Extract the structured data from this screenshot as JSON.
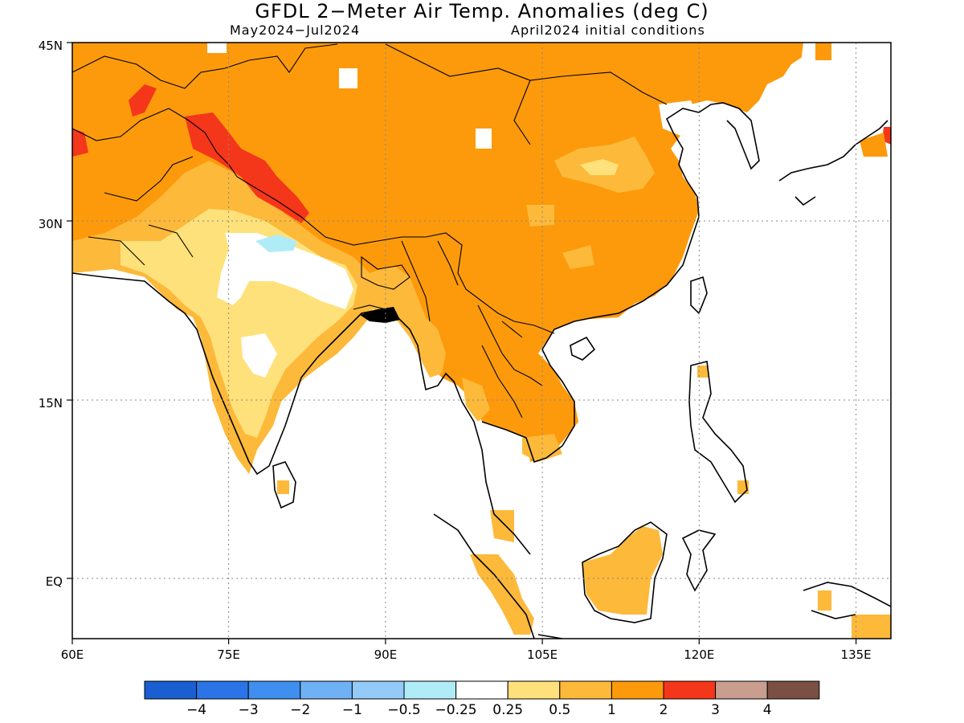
{
  "title": "GFDL 2−Meter Air Temp. Anomalies (deg C)",
  "subtitle_left": "May2024−Jul2024",
  "subtitle_right": "April2024 initial conditions",
  "map": {
    "lon_range": [
      60,
      140
    ],
    "lat_range": [
      -5.5,
      45
    ],
    "x_ticks": [
      "60E",
      "75E",
      "90E",
      "105E",
      "120E",
      "135E"
    ],
    "y_ticks": [
      "45N",
      "30N",
      "15N",
      "EQ"
    ]
  },
  "colorbar": {
    "colors": [
      "#1a5fd1",
      "#2a74e8",
      "#3f8ff0",
      "#6fb1f5",
      "#93caf8",
      "#b0ecf8",
      "#ffffff",
      "#fee17a",
      "#fdb93a",
      "#fc9a0c",
      "#f4361a",
      "#c99e8f",
      "#7a5042"
    ],
    "labels": [
      "−4",
      "−3",
      "−2",
      "−1",
      "−0.5",
      "−0.25",
      "0.25",
      "0.5",
      "1",
      "2",
      "3",
      "4"
    ]
  },
  "legend_colors": {
    "orange": "#fc9a0c",
    "light_orange": "#fdb93a",
    "yellow": "#fee17a",
    "red": "#f4361a",
    "light_blue": "#b0ecf8"
  }
}
